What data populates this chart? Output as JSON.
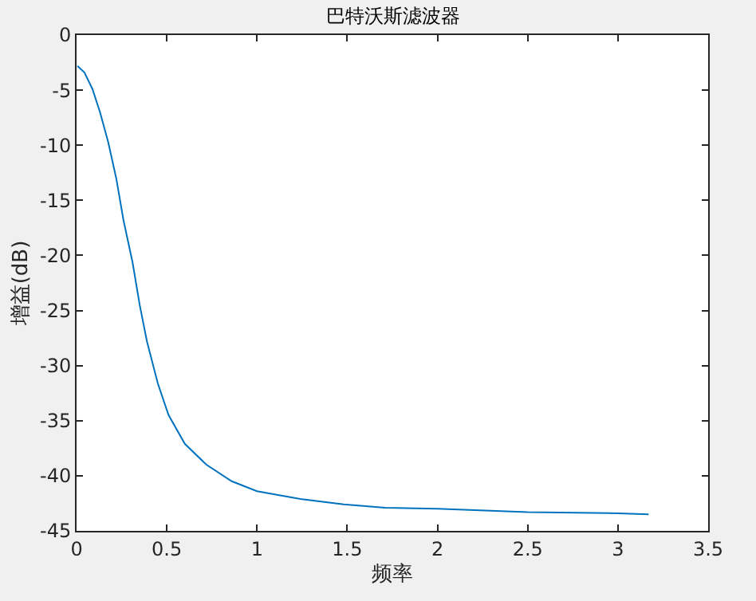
{
  "chart_data": {
    "type": "line",
    "title": "巴特沃斯滤波器",
    "xlabel": "频率",
    "ylabel": "增益(dB)",
    "x": [
      0.005,
      0.044,
      0.088,
      0.13,
      0.175,
      0.22,
      0.26,
      0.31,
      0.35,
      0.39,
      0.45,
      0.51,
      0.6,
      0.72,
      0.86,
      1.0,
      1.24,
      1.48,
      1.71,
      2.0,
      2.5,
      3.0,
      3.17
    ],
    "series": [
      {
        "color": "#0072bd",
        "values": [
          -2.8,
          -3.4,
          -4.9,
          -7.0,
          -9.7,
          -13.0,
          -16.8,
          -20.6,
          -24.5,
          -27.8,
          -31.6,
          -34.5,
          -37.1,
          -39.0,
          -40.5,
          -41.4,
          -42.1,
          -42.6,
          -42.9,
          -43.0,
          -43.3,
          -43.4,
          -43.5
        ]
      }
    ],
    "xlim": [
      0,
      3.5
    ],
    "xticks": [
      0,
      0.5,
      1,
      1.5,
      2,
      2.5,
      3,
      3.5
    ],
    "ylim": [
      -45,
      0
    ],
    "yticks": [
      -45,
      -40,
      -35,
      -30,
      -25,
      -20,
      -15,
      -10,
      -5,
      0
    ],
    "marker": "none",
    "line_style": "solid"
  }
}
